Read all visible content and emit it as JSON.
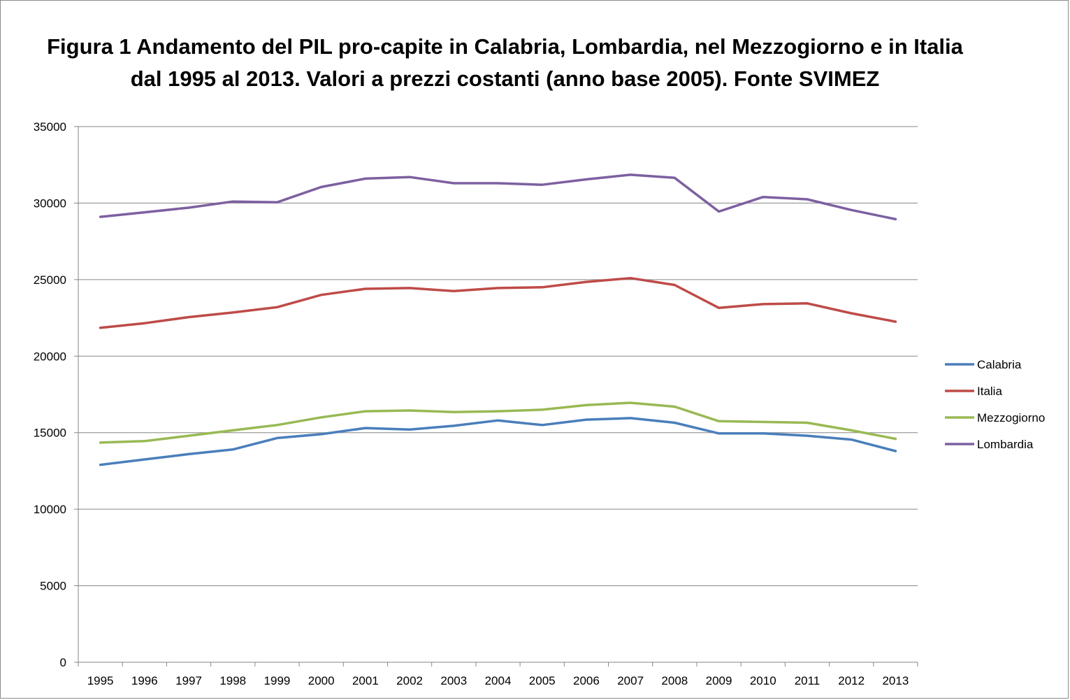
{
  "chart_data": {
    "type": "line",
    "title": "Figura  1 Andamento del PIL pro-capite in Calabria, Lombardia, nel Mezzogiorno e in Italia dal 1995 al 2013. Valori a prezzi costanti (anno base 2005). Fonte SVIMEZ",
    "xlabel": "",
    "ylabel": "",
    "ylim": [
      0,
      35000
    ],
    "yticks": [
      "0",
      "5000",
      "10000",
      "15000",
      "20000",
      "25000",
      "30000",
      "35000"
    ],
    "grid": true,
    "legend_position": "right",
    "categories": [
      "1995",
      "1996",
      "1997",
      "1998",
      "1999",
      "2000",
      "2001",
      "2002",
      "2003",
      "2004",
      "2005",
      "2006",
      "2007",
      "2008",
      "2009",
      "2010",
      "2011",
      "2012",
      "2013"
    ],
    "series": [
      {
        "name": "Calabria",
        "color": "#4a7ebb",
        "values": [
          12900,
          13250,
          13600,
          13900,
          14650,
          14900,
          15300,
          15200,
          15450,
          15800,
          15500,
          15850,
          15950,
          15650,
          14950,
          14950,
          14800,
          14550,
          13800
        ]
      },
      {
        "name": "Italia",
        "color": "#be4b48",
        "values": [
          21850,
          22150,
          22550,
          22850,
          23200,
          24000,
          24400,
          24450,
          24250,
          24450,
          24500,
          24850,
          25100,
          24650,
          23150,
          23400,
          23450,
          22800,
          22250
        ]
      },
      {
        "name": "Mezzogiorno",
        "color": "#98b954",
        "values": [
          14350,
          14450,
          14800,
          15150,
          15500,
          16000,
          16400,
          16450,
          16350,
          16400,
          16500,
          16800,
          16950,
          16700,
          15750,
          15700,
          15650,
          15150,
          14600
        ]
      },
      {
        "name": "Lombardia",
        "color": "#7d60a0",
        "values": [
          29100,
          29400,
          29700,
          30100,
          30050,
          31050,
          31600,
          31700,
          31300,
          31300,
          31200,
          31550,
          31850,
          31650,
          29450,
          30400,
          30250,
          29550,
          28950
        ]
      }
    ]
  }
}
